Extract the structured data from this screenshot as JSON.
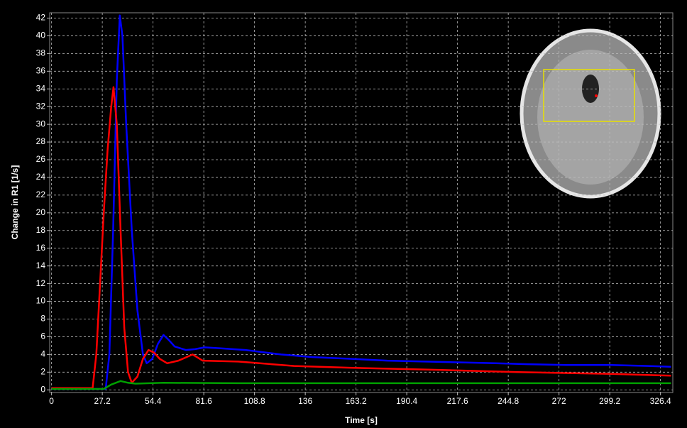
{
  "chart_data": {
    "type": "line",
    "x_label": "Time [s]",
    "y_label": "Change in R1 [1/s]",
    "xlim": [
      -1,
      333
    ],
    "ylim": [
      -0.3,
      42.6
    ],
    "xticks": [
      0,
      27.2,
      54.4,
      81.6,
      108.8,
      136,
      163.2,
      190.4,
      217.6,
      244.8,
      272,
      299.2,
      326.4
    ],
    "yticks": [
      0,
      2,
      4,
      6,
      8,
      10,
      12,
      14,
      16,
      18,
      20,
      22,
      24,
      26,
      28,
      30,
      32,
      34,
      36,
      38,
      40,
      42
    ],
    "grid": true,
    "series": [
      {
        "color": "#0000ff",
        "x": [
          0,
          29,
          31,
          33,
          35,
          36.6,
          38,
          40,
          43,
          46,
          49,
          51,
          54,
          57,
          60,
          63,
          66,
          72,
          77,
          82,
          90,
          104,
          123,
          140,
          161,
          180,
          200,
          220,
          238,
          255,
          276,
          300,
          320,
          332
        ],
        "values": [
          0.1,
          0.1,
          4,
          18,
          35,
          42.3,
          40,
          30,
          18,
          9,
          4,
          3,
          3.5,
          5.2,
          6.2,
          5.6,
          4.9,
          4.5,
          4.6,
          4.8,
          4.7,
          4.5,
          4,
          3.7,
          3.5,
          3.3,
          3.2,
          3.1,
          3,
          2.9,
          2.8,
          2.8,
          2.7,
          2.6
        ]
      },
      {
        "color": "#ff0000",
        "x": [
          0,
          22,
          24,
          26,
          28,
          30,
          32,
          33.2,
          35,
          37,
          39,
          41,
          43,
          46,
          49,
          52,
          55,
          58,
          62,
          68,
          75.6,
          81,
          100,
          130,
          160,
          200,
          250,
          300,
          332
        ],
        "values": [
          0.2,
          0.2,
          4,
          12,
          20,
          27,
          32,
          34.2,
          30,
          18,
          7,
          2,
          0.8,
          1.5,
          3.5,
          4.5,
          4.2,
          3.5,
          3,
          3.3,
          4,
          3.3,
          3.2,
          2.7,
          2.5,
          2.3,
          2,
          1.8,
          1.6
        ]
      },
      {
        "color": "#00a000",
        "x": [
          0,
          28,
          32,
          37,
          41,
          45,
          60,
          100,
          200,
          332
        ],
        "values": [
          0.1,
          0.1,
          0.6,
          1,
          0.8,
          0.7,
          0.8,
          0.75,
          0.75,
          0.75
        ]
      }
    ]
  }
}
